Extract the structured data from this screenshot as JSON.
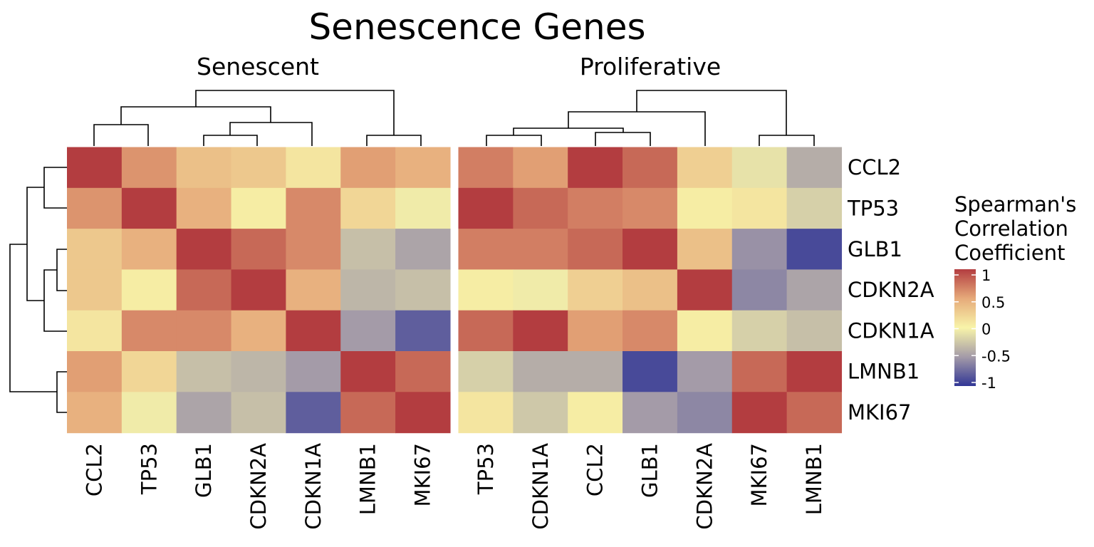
{
  "chart_data": {
    "type": "heatmap",
    "title": "Senescence Genes",
    "rows": [
      "CCL2",
      "TP53",
      "GLB1",
      "CDKN2A",
      "CDKN1A",
      "LMNB1",
      "MKI67"
    ],
    "panels": [
      {
        "name": "Senescent",
        "columns": [
          "CCL2",
          "TP53",
          "GLB1",
          "CDKN2A",
          "CDKN1A",
          "LMNB1",
          "MKI67"
        ],
        "values": [
          [
            1.0,
            0.6,
            0.35,
            0.3,
            0.1,
            0.55,
            0.45
          ],
          [
            0.6,
            1.0,
            0.45,
            0.05,
            0.65,
            0.2,
            -0.05
          ],
          [
            0.3,
            0.45,
            1.0,
            0.8,
            0.65,
            -0.3,
            -0.45
          ],
          [
            0.3,
            0.05,
            0.8,
            1.0,
            0.45,
            -0.35,
            -0.3
          ],
          [
            0.1,
            0.65,
            0.65,
            0.45,
            1.0,
            -0.5,
            -0.8
          ],
          [
            0.55,
            0.2,
            -0.3,
            -0.35,
            -0.5,
            1.0,
            0.8
          ],
          [
            0.45,
            -0.05,
            -0.45,
            -0.3,
            -0.8,
            0.8,
            1.0
          ]
        ]
      },
      {
        "name": "Proliferative",
        "columns": [
          "TP53",
          "CDKN1A",
          "CCL2",
          "GLB1",
          "CDKN2A",
          "MKI67",
          "LMNB1"
        ],
        "values": [
          [
            0.7,
            0.55,
            1.0,
            0.8,
            0.25,
            -0.1,
            -0.4
          ],
          [
            1.0,
            0.8,
            0.7,
            0.65,
            0.05,
            0.1,
            -0.2
          ],
          [
            0.7,
            0.7,
            0.8,
            1.0,
            0.35,
            -0.55,
            -0.9
          ],
          [
            0.05,
            -0.05,
            0.25,
            0.35,
            1.0,
            -0.6,
            -0.45
          ],
          [
            0.8,
            1.0,
            0.55,
            0.65,
            0.05,
            -0.2,
            -0.3
          ],
          [
            -0.2,
            -0.4,
            -0.4,
            -0.9,
            -0.5,
            0.8,
            1.0
          ],
          [
            0.1,
            -0.25,
            0.05,
            -0.5,
            -0.6,
            1.0,
            0.8
          ]
        ]
      }
    ],
    "legend": {
      "title_lines": [
        "Spearman's",
        "Correlation",
        "Coefficient"
      ],
      "ticks": [
        "1",
        "0.5",
        "0",
        "-0.5",
        "-1"
      ],
      "tick_values": [
        1,
        0.5,
        0,
        -0.5,
        -1
      ],
      "range": [
        -1,
        1
      ],
      "placement": "right"
    },
    "colorscale": [
      {
        "v": -1.0,
        "c": "#313695"
      },
      {
        "v": -0.5,
        "c": "#a49ba8"
      },
      {
        "v": 0.0,
        "c": "#f8f4a9"
      },
      {
        "v": 0.5,
        "c": "#e6aa7a"
      },
      {
        "v": 1.0,
        "c": "#b33d40"
      }
    ],
    "grid": false
  }
}
